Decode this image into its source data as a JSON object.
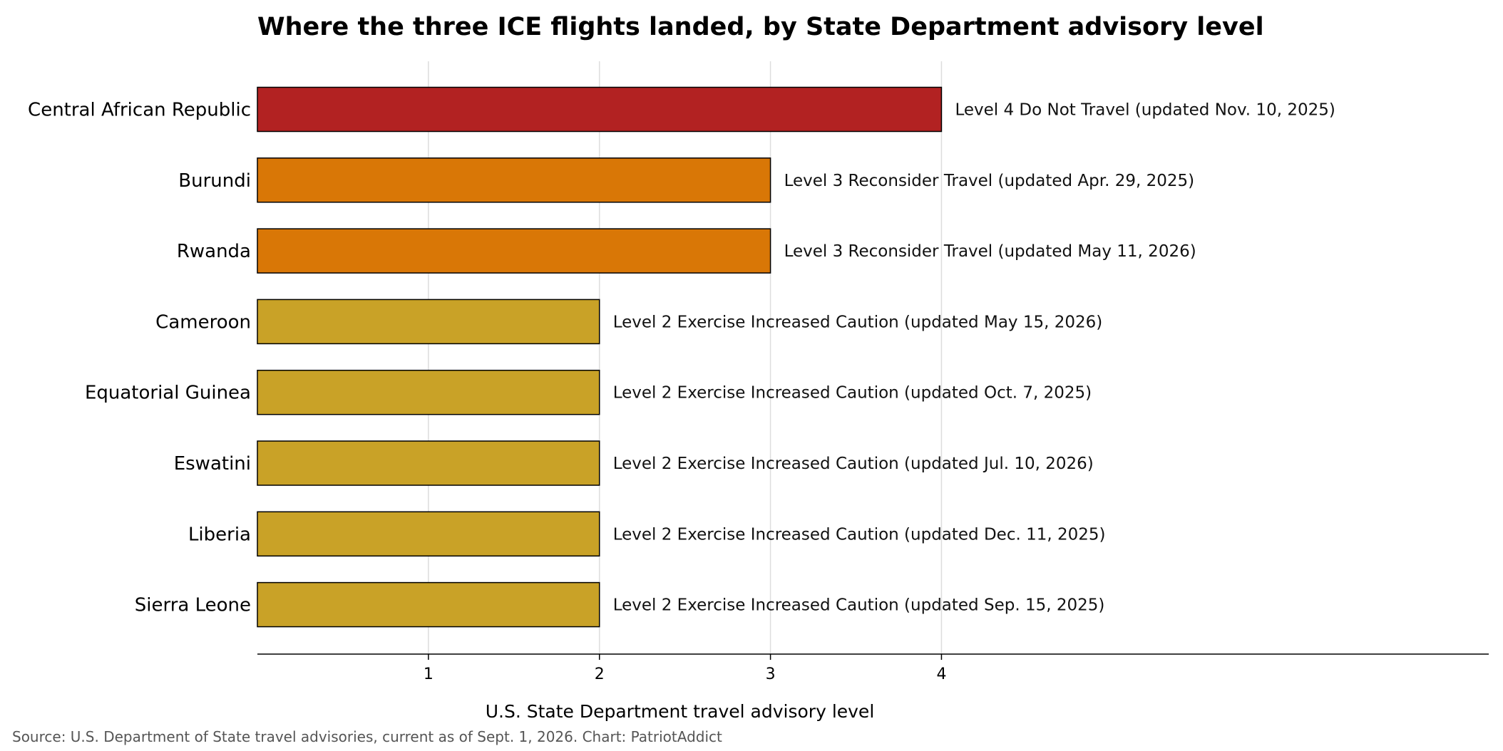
{
  "chart_data": {
    "type": "bar",
    "orientation": "horizontal",
    "title": "Where the three ICE flights landed, by State Department advisory level",
    "xlabel": "U.S. State Department travel advisory level",
    "ylabel": "",
    "xlim": [
      0,
      7.2
    ],
    "xticks": [
      1,
      2,
      3,
      4
    ],
    "grid": "vertical",
    "categories": [
      "Central African Republic",
      "Burundi",
      "Rwanda",
      "Cameroon",
      "Equatorial Guinea",
      "Eswatini",
      "Liberia",
      "Sierra Leone"
    ],
    "values": [
      4,
      3,
      3,
      2,
      2,
      2,
      2,
      2
    ],
    "colors": [
      "#b22222",
      "#d97706",
      "#d97706",
      "#c9a227",
      "#c9a227",
      "#c9a227",
      "#c9a227",
      "#c9a227"
    ],
    "annotations": [
      {
        "level": "Level 4",
        "label": "Do Not Travel",
        "updated": "(updated Nov. 10, 2025)"
      },
      {
        "level": "Level 3",
        "label": "Reconsider Travel",
        "updated": "(updated Apr. 29, 2025)"
      },
      {
        "level": "Level 3",
        "label": "Reconsider Travel",
        "updated": "(updated May 11, 2026)"
      },
      {
        "level": "Level 2",
        "label": "Exercise Increased Caution",
        "updated": "(updated May 15, 2026)"
      },
      {
        "level": "Level 2",
        "label": "Exercise Increased Caution",
        "updated": "(updated Oct. 7, 2025)"
      },
      {
        "level": "Level 2",
        "label": "Exercise Increased Caution",
        "updated": "(updated Jul. 10, 2026)"
      },
      {
        "level": "Level 2",
        "label": "Exercise Increased Caution",
        "updated": "(updated Dec. 11, 2025)"
      },
      {
        "level": "Level 2",
        "label": "Exercise Increased Caution",
        "updated": "(updated Sep. 15, 2025)"
      }
    ]
  },
  "footer": {
    "source": "Source: U.S. Department of State travel advisories, current as of Sept. 1, 2026.   Chart: PatriotAddict"
  }
}
